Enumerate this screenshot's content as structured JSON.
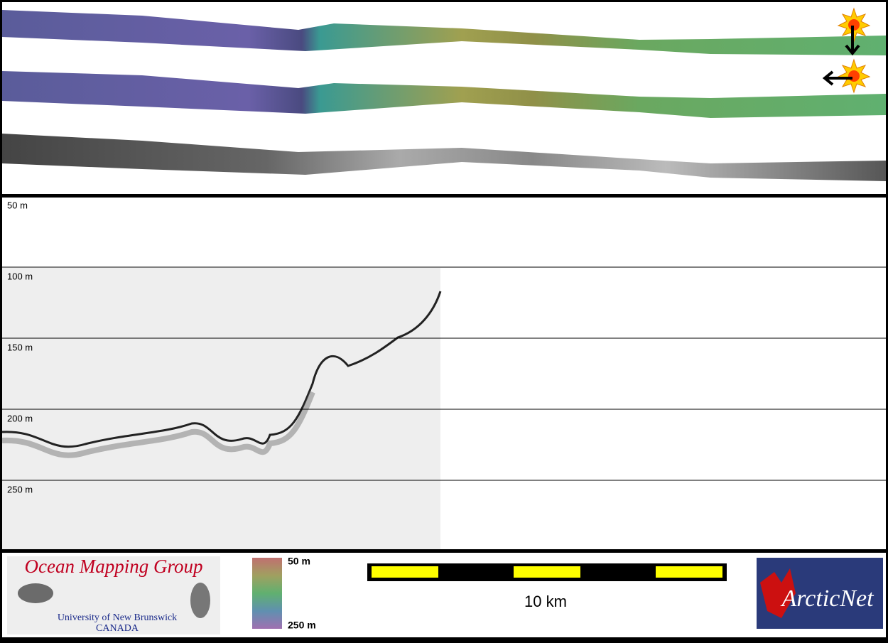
{
  "profile": {
    "depth_labels": [
      "50 m",
      "100 m",
      "150 m",
      "200 m",
      "250 m"
    ]
  },
  "footer": {
    "logo": {
      "title": "Ocean Mapping Group",
      "university": "University of New Brunswick",
      "country": "CANADA"
    },
    "colorbar": {
      "top_label": "50 m",
      "bottom_label": "250 m"
    },
    "scale_bar": {
      "label": "10 km"
    },
    "partner_logo": {
      "text": "ArcticNet"
    }
  }
}
